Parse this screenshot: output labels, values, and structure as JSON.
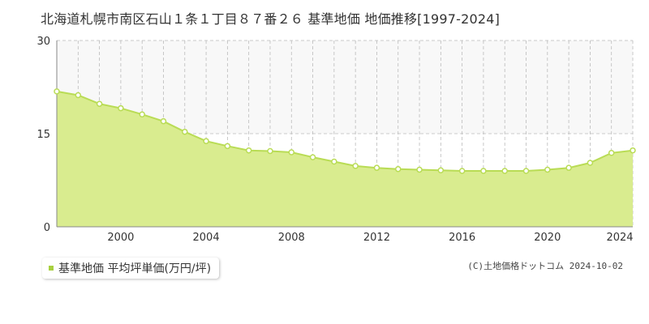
{
  "title": "北海道札幌市南区石山１条１丁目８７番２６ 基準地価 地価推移[1997-2024]",
  "legend_label": "基準地価 平均坪単価(万円/坪)",
  "credit": "(C)土地価格ドットコム 2024-10-02",
  "colors": {
    "fill": "#d9ec8f",
    "line": "#b9dc55",
    "marker": "#b9dc55",
    "grid": "#bbbbbb",
    "upper_band": "#f8f8f8"
  },
  "chart_data": {
    "type": "area",
    "title": "北海道札幌市南区石山１条１丁目８７番２６ 基準地価 地価推移[1997-2024]",
    "x": [
      1997,
      1998,
      1999,
      2000,
      2001,
      2002,
      2003,
      2004,
      2005,
      2006,
      2007,
      2008,
      2009,
      2010,
      2011,
      2012,
      2013,
      2014,
      2015,
      2016,
      2017,
      2018,
      2019,
      2020,
      2021,
      2022,
      2023,
      2024
    ],
    "series": [
      {
        "name": "基準地価 平均坪単価(万円/坪)",
        "values": [
          21.8,
          21.2,
          19.8,
          19.1,
          18.1,
          17.0,
          15.3,
          13.8,
          13.0,
          12.3,
          12.2,
          12.0,
          11.2,
          10.5,
          9.8,
          9.5,
          9.3,
          9.2,
          9.1,
          9.0,
          9.0,
          9.0,
          9.0,
          9.2,
          9.5,
          10.3,
          11.9,
          12.3
        ]
      }
    ],
    "xlim": [
      1997,
      2024
    ],
    "ylim": [
      0,
      30
    ],
    "yticks": [
      "0",
      "15",
      "30"
    ],
    "xticks": [
      "2000",
      "2004",
      "2008",
      "2012",
      "2016",
      "2020",
      "2024"
    ],
    "xlabel": "",
    "ylabel": "",
    "grid": true,
    "legend_position": "bottom-left"
  }
}
